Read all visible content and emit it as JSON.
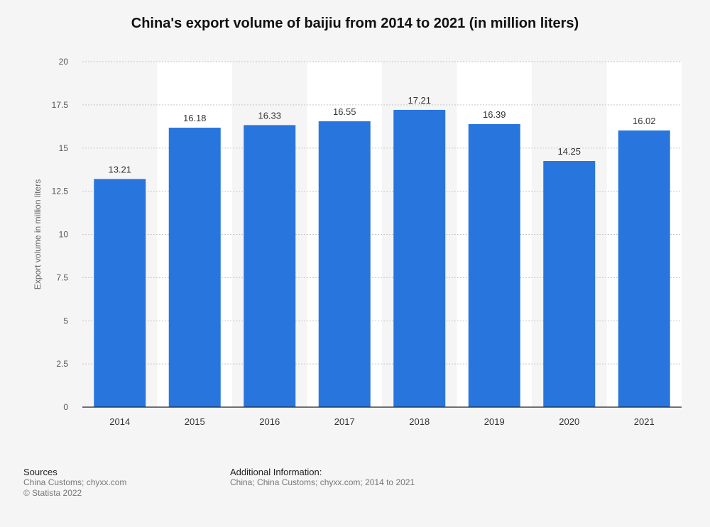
{
  "chart_data": {
    "type": "bar",
    "title": "China's export volume of baijiu from 2014 to 2021 (in million liters)",
    "ylabel": "Export volume in million liters",
    "xlabel": "",
    "categories": [
      "2014",
      "2015",
      "2016",
      "2017",
      "2018",
      "2019",
      "2020",
      "2021"
    ],
    "values": [
      13.21,
      16.18,
      16.33,
      16.55,
      17.21,
      16.39,
      14.25,
      16.02
    ],
    "value_labels": [
      "13.21",
      "16.18",
      "16.33",
      "16.55",
      "17.21",
      "16.39",
      "14.25",
      "16.02"
    ],
    "ylim": [
      0,
      20
    ],
    "yticks": [
      0,
      2.5,
      5,
      7.5,
      10,
      12.5,
      15,
      17.5,
      20
    ],
    "ytick_labels": [
      "0",
      "2.5",
      "5",
      "7.5",
      "10",
      "12.5",
      "15",
      "17.5",
      "20"
    ],
    "grid": true,
    "bar_color": "#2876dd",
    "legend": "none"
  },
  "footer": {
    "sources_heading": "Sources",
    "sources_line1": "China Customs; chyxx.com",
    "sources_line2": "© Statista 2022",
    "additional_heading": "Additional Information:",
    "additional_line1": "China; China Customs; chyxx.com; 2014 to 2021"
  }
}
